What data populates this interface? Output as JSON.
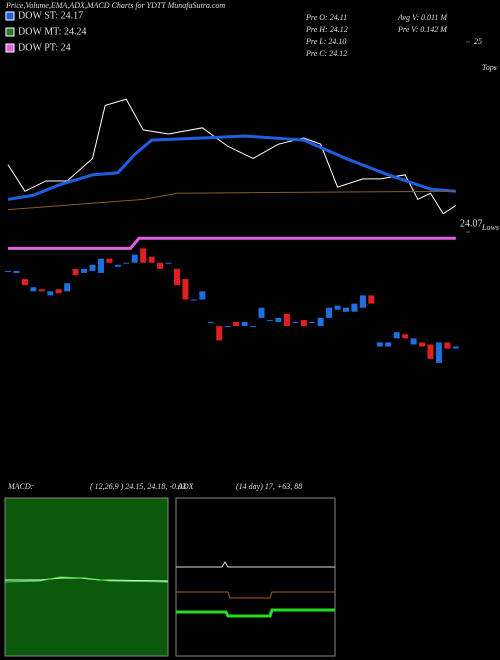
{
  "chart_data": {
    "type": "candlestick",
    "title": "Price,Volume,EMA,ADX,MACD Charts for YDTT MunafaSutra.com",
    "info": [
      "Pre  O: 24.11",
      "Pre  H: 24.12",
      "Pre  L: 24.10",
      "Pre  C: 24.12",
      "Avg  V: 0.011  M",
      "Pre  V: 0.142  M"
    ],
    "legend": [
      {
        "label": "DOW ST: 24.17",
        "color": "#1e5fe0"
      },
      {
        "label": "DOW MT: 24.24",
        "color": "#2a7a2a"
      },
      {
        "label": "DOW PT: 24",
        "color": "#e060e0"
      }
    ],
    "annotations": [
      "Tops",
      "Lows"
    ],
    "ylim": [
      23.4,
      25
    ],
    "yticks": [
      25,
      24.07
    ],
    "up_color": "#1e6fe0",
    "down_color": "#e02020",
    "open": [
      23.88,
      23.87,
      23.84,
      23.78,
      23.79,
      23.76,
      23.79,
      23.78,
      23.89,
      23.87,
      23.88,
      23.87,
      23.94,
      23.9,
      23.92,
      23.92,
      23.99,
      23.95,
      23.92,
      23.92,
      23.89,
      23.84,
      23.74,
      23.74,
      23.63,
      23.61,
      23.61,
      23.63,
      23.61,
      23.61,
      23.65,
      23.64,
      23.63,
      23.67,
      23.63,
      23.64,
      23.63,
      23.61,
      23.65,
      23.69,
      23.68,
      23.68,
      23.7,
      23.76,
      23.51,
      23.51,
      23.55,
      23.57,
      23.52,
      23.53,
      23.52,
      23.43,
      23.53,
      23.5
    ],
    "close": [
      23.88,
      23.88,
      23.81,
      23.8,
      23.78,
      23.78,
      23.77,
      23.82,
      23.86,
      23.89,
      23.91,
      23.94,
      23.92,
      23.91,
      23.92,
      23.96,
      23.92,
      23.92,
      23.89,
      23.92,
      23.81,
      23.74,
      23.74,
      23.78,
      23.63,
      23.54,
      23.61,
      23.61,
      23.63,
      23.61,
      23.7,
      23.64,
      23.65,
      23.61,
      23.63,
      23.61,
      23.63,
      23.65,
      23.7,
      23.71,
      23.7,
      23.72,
      23.76,
      23.72,
      23.53,
      23.53,
      23.58,
      23.55,
      23.55,
      23.51,
      23.45,
      23.53,
      23.5,
      23.51
    ],
    "lines": [
      {
        "color": "#ffffff",
        "width": 1,
        "x": [
          0,
          2,
          4.5,
          7,
          10,
          11.5,
          14,
          16,
          19,
          23,
          26,
          29,
          32,
          35,
          37,
          39,
          42,
          44,
          47,
          48.5,
          50,
          51.5,
          53
        ],
        "values": [
          24.4,
          24.27,
          24.32,
          24.32,
          24.43,
          24.69,
          24.72,
          24.57,
          24.55,
          24.58,
          24.49,
          24.43,
          24.5,
          24.53,
          24.5,
          24.29,
          24.33,
          24.33,
          24.35,
          24.23,
          24.26,
          24.16,
          24.2
        ]
      },
      {
        "color": "#1e5fe0",
        "width": 3,
        "x": [
          0,
          3,
          6,
          10,
          13,
          15,
          17,
          23,
          28,
          35,
          40,
          45,
          50,
          53
        ],
        "values": [
          24.23,
          24.25,
          24.3,
          24.35,
          24.36,
          24.45,
          24.52,
          24.53,
          24.54,
          24.52,
          24.43,
          24.35,
          24.28,
          24.27
        ]
      },
      {
        "color": "#8b5a2b",
        "width": 1,
        "x": [
          0,
          16,
          20,
          53
        ],
        "values": [
          24.18,
          24.23,
          24.26,
          24.27
        ]
      },
      {
        "color": "#e060e0",
        "width": 3,
        "x": [
          0,
          14.5,
          15.5,
          53
        ],
        "values": [
          23.99,
          23.99,
          24.04,
          24.04
        ]
      }
    ],
    "macd": {
      "label": "MACD:",
      "params": "( 12,26,9 ) 24.15,  24.18,  -0.03"
    },
    "adx": {
      "label": "ADX",
      "params": "(14  day) 17,  +63,  88"
    }
  }
}
